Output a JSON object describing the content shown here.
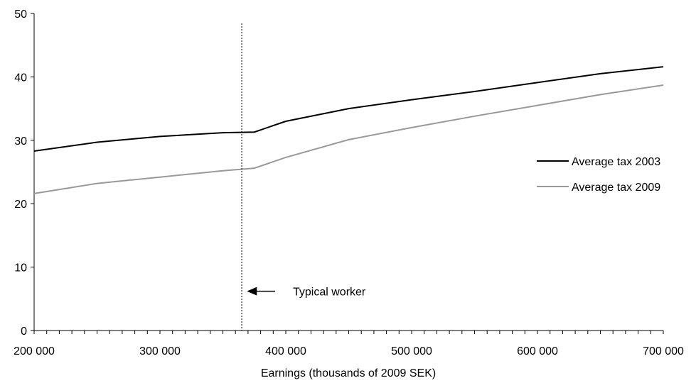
{
  "chart_data": {
    "type": "line",
    "title": "",
    "xlabel": "Earnings (thousands of 2009 SEK)",
    "ylabel": "",
    "xlim": [
      200000,
      700000
    ],
    "ylim": [
      0,
      50
    ],
    "x_ticks": [
      200000,
      300000,
      400000,
      500000,
      600000,
      700000
    ],
    "x_tick_labels": [
      "200 000",
      "300 000",
      "400 000",
      "500 000",
      "600 000",
      "700 000"
    ],
    "y_ticks": [
      0,
      10,
      20,
      30,
      40,
      50
    ],
    "y_tick_labels": [
      "0",
      "10",
      "20",
      "30",
      "40",
      "50"
    ],
    "grid": false,
    "legend_position": "right",
    "series": [
      {
        "name": "Average tax 2003",
        "color": "#000000",
        "x": [
          200000,
          250000,
          300000,
          350000,
          375000,
          400000,
          450000,
          500000,
          550000,
          600000,
          650000,
          700000
        ],
        "y": [
          28.3,
          29.7,
          30.6,
          31.2,
          31.3,
          33.0,
          35.0,
          36.4,
          37.7,
          39.1,
          40.5,
          41.6
        ]
      },
      {
        "name": "Average tax 2009",
        "color": "#999999",
        "x": [
          200000,
          250000,
          300000,
          350000,
          375000,
          400000,
          450000,
          500000,
          550000,
          600000,
          650000,
          700000
        ],
        "y": [
          21.6,
          23.2,
          24.2,
          25.2,
          25.6,
          27.3,
          30.1,
          32.0,
          33.8,
          35.5,
          37.2,
          38.7
        ]
      }
    ],
    "annotations": [
      {
        "type": "vline",
        "x": 365000,
        "style": "dotted"
      },
      {
        "type": "arrow-label",
        "text": "Typical worker",
        "x": 400000,
        "y": 6.2,
        "direction": "left"
      }
    ]
  }
}
